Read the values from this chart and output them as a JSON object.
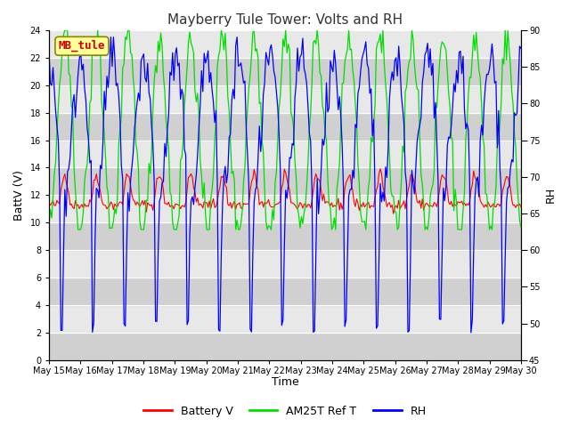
{
  "title": "Mayberry Tule Tower: Volts and RH",
  "xlabel": "Time",
  "ylabel_left": "BattV (V)",
  "ylabel_right": "RH",
  "ylim_left": [
    0,
    24
  ],
  "ylim_right": [
    45,
    90
  ],
  "yticks_left": [
    0,
    2,
    4,
    6,
    8,
    10,
    12,
    14,
    16,
    18,
    20,
    22,
    24
  ],
  "yticks_right": [
    45,
    50,
    55,
    60,
    65,
    70,
    75,
    80,
    85,
    90
  ],
  "xtick_labels": [
    "May 15",
    "May 16",
    "May 17",
    "May 18",
    "May 19",
    "May 20",
    "May 21",
    "May 22",
    "May 23",
    "May 24",
    "May 25",
    "May 26",
    "May 27",
    "May 28",
    "May 29",
    "May 30"
  ],
  "n_days": 15,
  "color_battery": "#ff0000",
  "color_am25t": "#00dd00",
  "color_rh": "#0000ff",
  "fig_bg": "#ffffff",
  "plot_bg": "#e8e8e8",
  "band_light": "#d8d8d8",
  "legend_labels": [
    "Battery V",
    "AM25T Ref T",
    "RH"
  ],
  "station_label": "MB_tule",
  "station_label_bg": "#ffff99",
  "station_label_border": "#888800",
  "station_label_color": "#cc0000",
  "title_fontsize": 11,
  "axis_fontsize": 9,
  "tick_fontsize": 7,
  "legend_fontsize": 9,
  "grid_color": "#cccccc",
  "seed": 42
}
